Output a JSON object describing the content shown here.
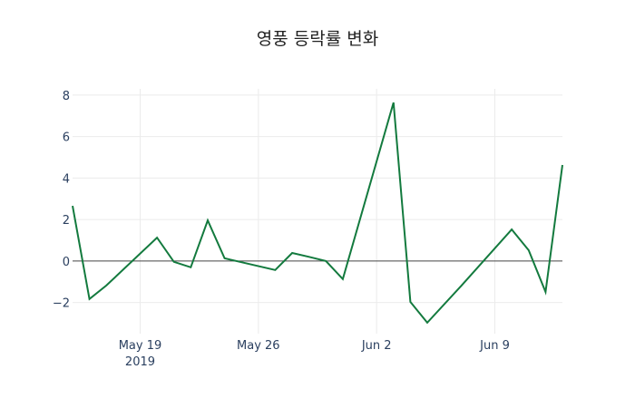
{
  "chart_data": {
    "type": "line",
    "title": "영풍 등락률 변화",
    "xlabel": "",
    "ylabel": "",
    "x": [
      "2019-05-15",
      "2019-05-16",
      "2019-05-17",
      "2019-05-20",
      "2019-05-21",
      "2019-05-22",
      "2019-05-23",
      "2019-05-24",
      "2019-05-27",
      "2019-05-28",
      "2019-05-29",
      "2019-05-30",
      "2019-05-31",
      "2019-06-03",
      "2019-06-04",
      "2019-06-05",
      "2019-06-07",
      "2019-06-10",
      "2019-06-11",
      "2019-06-12",
      "2019-06-13"
    ],
    "series": [
      {
        "name": "등락률",
        "color": "#137a3e",
        "values": [
          2.66,
          -1.83,
          -1.18,
          1.13,
          -0.04,
          -0.3,
          1.96,
          0.13,
          -0.43,
          0.39,
          0.2,
          0.0,
          -0.87,
          7.64,
          -1.97,
          -2.97,
          -1.2,
          1.52,
          0.52,
          -1.49,
          4.63
        ]
      }
    ],
    "x_ticks": [
      {
        "date": "2019-05-19",
        "label": "May 19",
        "sublabel": "2019"
      },
      {
        "date": "2019-05-26",
        "label": "May 26",
        "sublabel": ""
      },
      {
        "date": "2019-06-02",
        "label": "Jun 2",
        "sublabel": ""
      },
      {
        "date": "2019-06-09",
        "label": "Jun 9",
        "sublabel": ""
      }
    ],
    "y_ticks": [
      -2,
      0,
      2,
      4,
      6,
      8
    ],
    "y_tick_labels": [
      "−2",
      "0",
      "2",
      "4",
      "6",
      "8"
    ],
    "ylim": [
      -3.5,
      8.3
    ],
    "xlim": [
      "2019-05-15",
      "2019-06-13"
    ],
    "grid": true,
    "zero_line": true,
    "legend": "none"
  }
}
